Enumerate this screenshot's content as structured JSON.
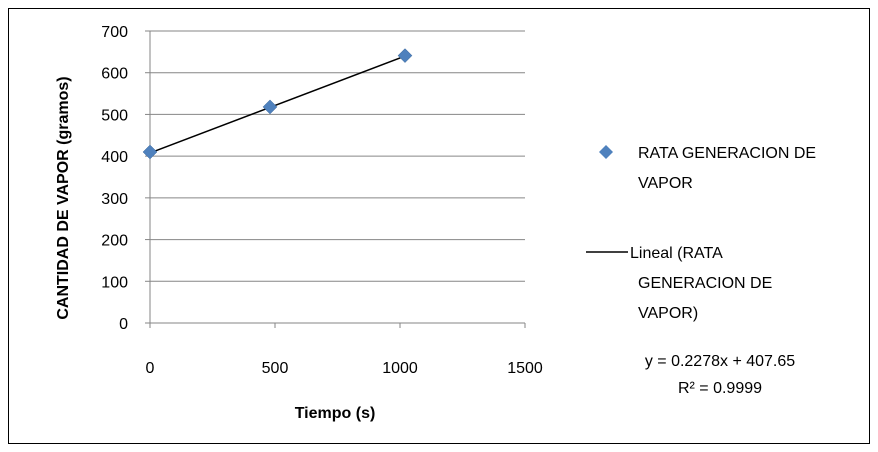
{
  "chart_data": {
    "type": "scatter",
    "xlabel": "Tiempo (s)",
    "ylabel": "CANTIDAD DE VAPOR (gramos)",
    "xlim": [
      0,
      1500
    ],
    "ylim": [
      0,
      700
    ],
    "xticks": [
      "0",
      "500",
      "1000",
      "1500"
    ],
    "yticks": [
      "0",
      "100",
      "200",
      "300",
      "400",
      "500",
      "600",
      "700"
    ],
    "grid": "horizontal",
    "legend_position": "right",
    "series": [
      {
        "name": "RATA GENERACION  DE VAPOR",
        "marker": "diamond",
        "color": "#4F81BD",
        "x": [
          0,
          480,
          1020
        ],
        "y": [
          410,
          518,
          641
        ]
      }
    ],
    "trendline": {
      "name": "Lineal (RATA GENERACION  DE VAPOR)",
      "color": "#000000",
      "slope": 0.2278,
      "intercept": 407.65,
      "x_range": [
        0,
        1020
      ]
    },
    "equation": "y = 0.2278x + 407.65",
    "r_squared": "R² = 0.9999",
    "legend": {
      "series_label_lines": [
        "RATA GENERACION  DE",
        "VAPOR"
      ],
      "trend_label_lines": [
        "Lineal (RATA",
        "GENERACION  DE",
        "VAPOR)"
      ]
    }
  }
}
